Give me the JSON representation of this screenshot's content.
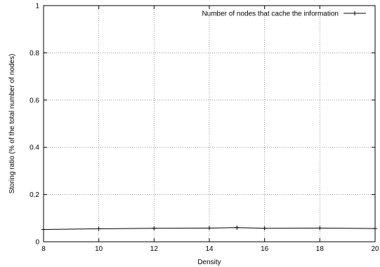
{
  "chart_data": {
    "type": "line",
    "title": "",
    "xlabel": "Density",
    "ylabel": "Storing ratio (% of the total number of nodes)",
    "xlim": [
      8,
      20
    ],
    "ylim": [
      0,
      1
    ],
    "x_ticks": [
      8,
      10,
      12,
      14,
      16,
      18,
      20
    ],
    "y_ticks": [
      0,
      0.2,
      0.4,
      0.6,
      0.8,
      1
    ],
    "x_tick_labels": [
      "8",
      "10",
      "12",
      "14",
      "16",
      "18",
      "20"
    ],
    "y_tick_labels": [
      "0",
      "0.2",
      "0.4",
      "0.6",
      "0.8",
      "1"
    ],
    "grid": true,
    "legend_position": "top-right",
    "series": [
      {
        "name": "Number of nodes that cache the information",
        "marker": "plus",
        "color": "#000000",
        "x": [
          8,
          10,
          12,
          14,
          15,
          16,
          18,
          20
        ],
        "y": [
          0.052,
          0.055,
          0.057,
          0.058,
          0.06,
          0.057,
          0.058,
          0.056
        ]
      }
    ]
  }
}
